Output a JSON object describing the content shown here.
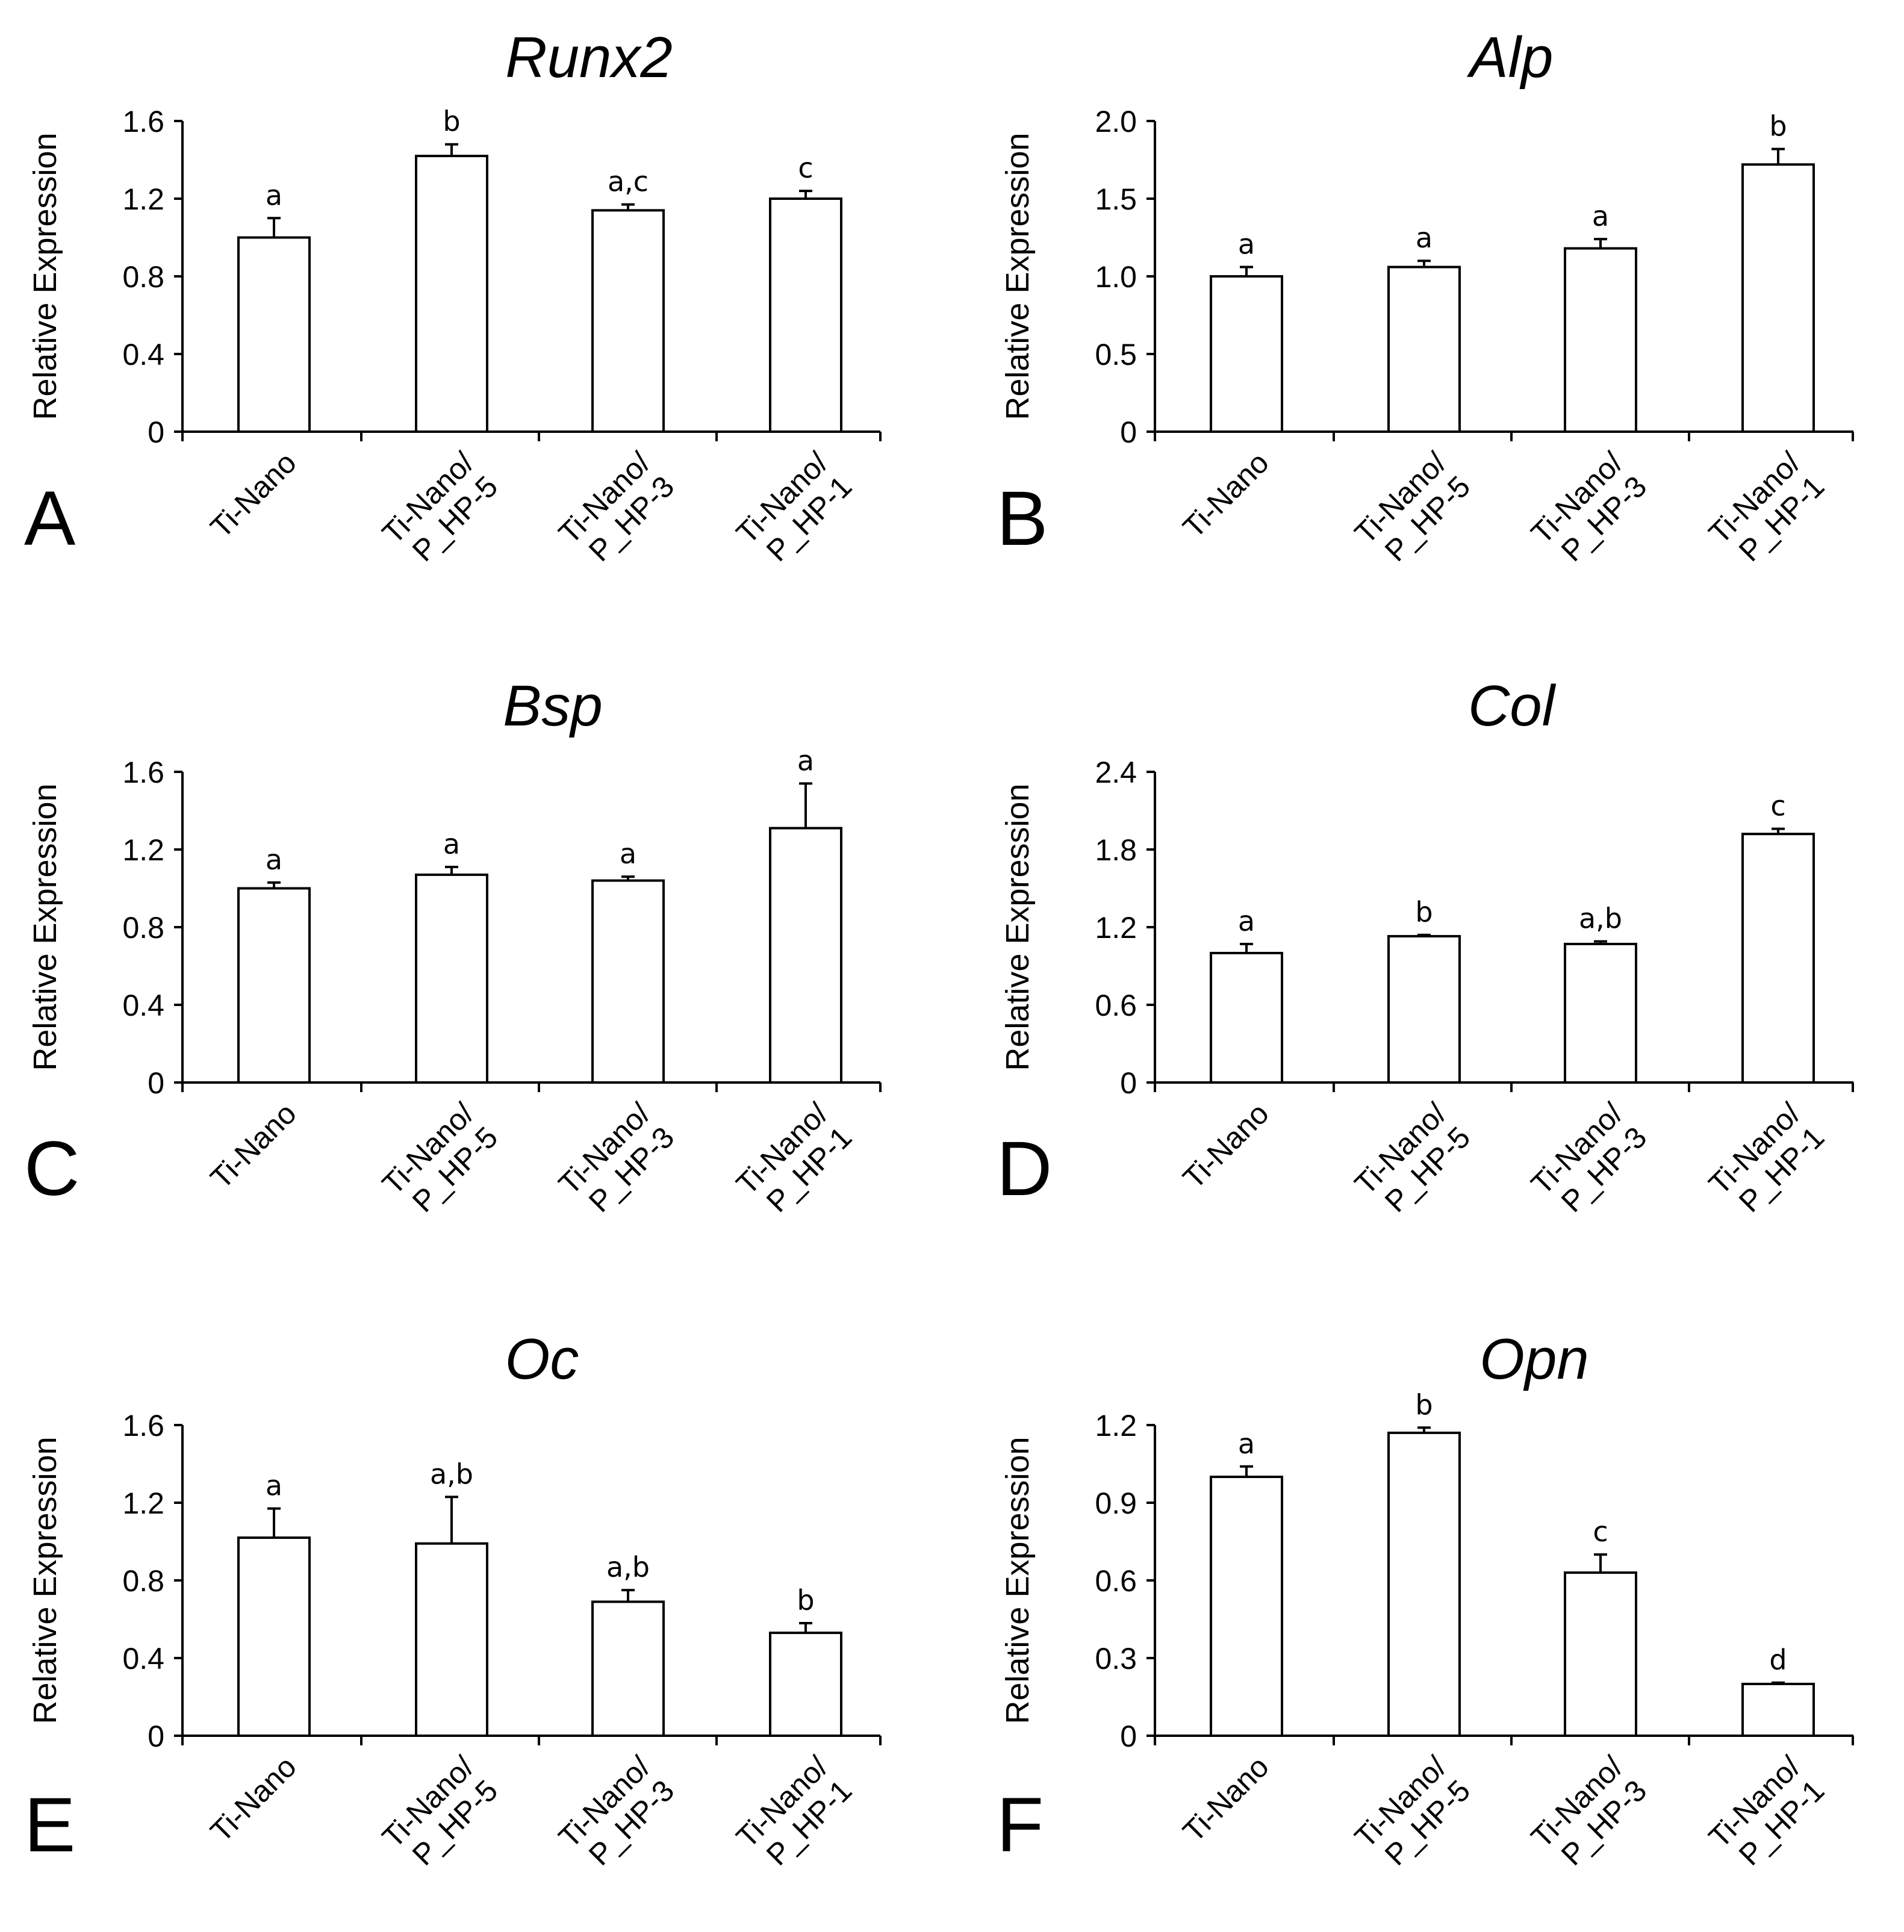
{
  "y_axis_label": "Relative Expression",
  "categories": [
    [
      "Ti-Nano"
    ],
    [
      "Ti-Nano/",
      "P_HP-5"
    ],
    [
      "Ti-Nano/",
      "P_HP-3"
    ],
    [
      "Ti-Nano/",
      "P_HP-1"
    ]
  ],
  "chart_data": [
    {
      "type": "bar",
      "panel": "A",
      "title": "Runx2",
      "ylabel": "Relative Expression",
      "ylim": [
        0,
        1.6
      ],
      "yticks": [
        "0",
        "0.4",
        "0.8",
        "1.2",
        "1.6"
      ],
      "categories": [
        "Ti-Nano",
        "Ti-Nano/P_HP-5",
        "Ti-Nano/P_HP-3",
        "Ti-Nano/P_HP-1"
      ],
      "values": [
        1.0,
        1.42,
        1.14,
        1.2
      ],
      "errors": [
        0.1,
        0.06,
        0.03,
        0.04
      ],
      "labels": [
        "a",
        "b",
        "a,c",
        "c"
      ]
    },
    {
      "type": "bar",
      "panel": "B",
      "title": "Alp",
      "ylabel": "Relative Expression",
      "ylim": [
        0,
        2.0
      ],
      "yticks": [
        "0",
        "0.5",
        "1.0",
        "1.5",
        "2.0"
      ],
      "categories": [
        "Ti-Nano",
        "Ti-Nano/P_HP-5",
        "Ti-Nano/P_HP-3",
        "Ti-Nano/P_HP-1"
      ],
      "values": [
        1.0,
        1.06,
        1.18,
        1.72
      ],
      "errors": [
        0.06,
        0.04,
        0.06,
        0.1
      ],
      "labels": [
        "a",
        "a",
        "a",
        "b"
      ]
    },
    {
      "type": "bar",
      "panel": "C",
      "title": "Bsp",
      "ylabel": "Relative Expression",
      "ylim": [
        0,
        1.6
      ],
      "yticks": [
        "0",
        "0.4",
        "0.8",
        "1.2",
        "1.6"
      ],
      "categories": [
        "Ti-Nano",
        "Ti-Nano/P_HP-5",
        "Ti-Nano/P_HP-3",
        "Ti-Nano/P_HP-1"
      ],
      "values": [
        1.0,
        1.07,
        1.04,
        1.31
      ],
      "errors": [
        0.03,
        0.04,
        0.02,
        0.23
      ],
      "labels": [
        "a",
        "a",
        "a",
        "a"
      ]
    },
    {
      "type": "bar",
      "panel": "D",
      "title": "Col",
      "ylabel": "Relative Expression",
      "ylim": [
        0,
        2.4
      ],
      "yticks": [
        "0",
        "0.6",
        "1.2",
        "1.8",
        "2.4"
      ],
      "categories": [
        "Ti-Nano",
        "Ti-Nano/P_HP-5",
        "Ti-Nano/P_HP-3",
        "Ti-Nano/P_HP-1"
      ],
      "values": [
        1.0,
        1.13,
        1.07,
        1.92
      ],
      "errors": [
        0.07,
        0.01,
        0.02,
        0.04
      ],
      "labels": [
        "a",
        "b",
        "a,b",
        "c"
      ]
    },
    {
      "type": "bar",
      "panel": "E",
      "title": "Oc",
      "ylabel": "Relative Expression",
      "ylim": [
        0,
        1.6
      ],
      "yticks": [
        "0",
        "0.4",
        "0.8",
        "1.2",
        "1.6"
      ],
      "categories": [
        "Ti-Nano",
        "Ti-Nano/P_HP-5",
        "Ti-Nano/P_HP-3",
        "Ti-Nano/P_HP-1"
      ],
      "values": [
        1.02,
        0.99,
        0.69,
        0.53
      ],
      "errors": [
        0.15,
        0.24,
        0.06,
        0.05
      ],
      "labels": [
        "a",
        "a,b",
        "a,b",
        "b"
      ]
    },
    {
      "type": "bar",
      "panel": "F",
      "title": "Opn",
      "ylabel": "Relative Expression",
      "ylim": [
        0,
        1.2
      ],
      "yticks": [
        "0",
        "0.3",
        "0.6",
        "0.9",
        "1.2"
      ],
      "categories": [
        "Ti-Nano",
        "Ti-Nano/P_HP-5",
        "Ti-Nano/P_HP-3",
        "Ti-Nano/P_HP-1"
      ],
      "values": [
        1.0,
        1.17,
        0.63,
        0.2
      ],
      "errors": [
        0.04,
        0.02,
        0.07,
        0.005
      ],
      "labels": [
        "a",
        "b",
        "c",
        "d"
      ]
    }
  ]
}
